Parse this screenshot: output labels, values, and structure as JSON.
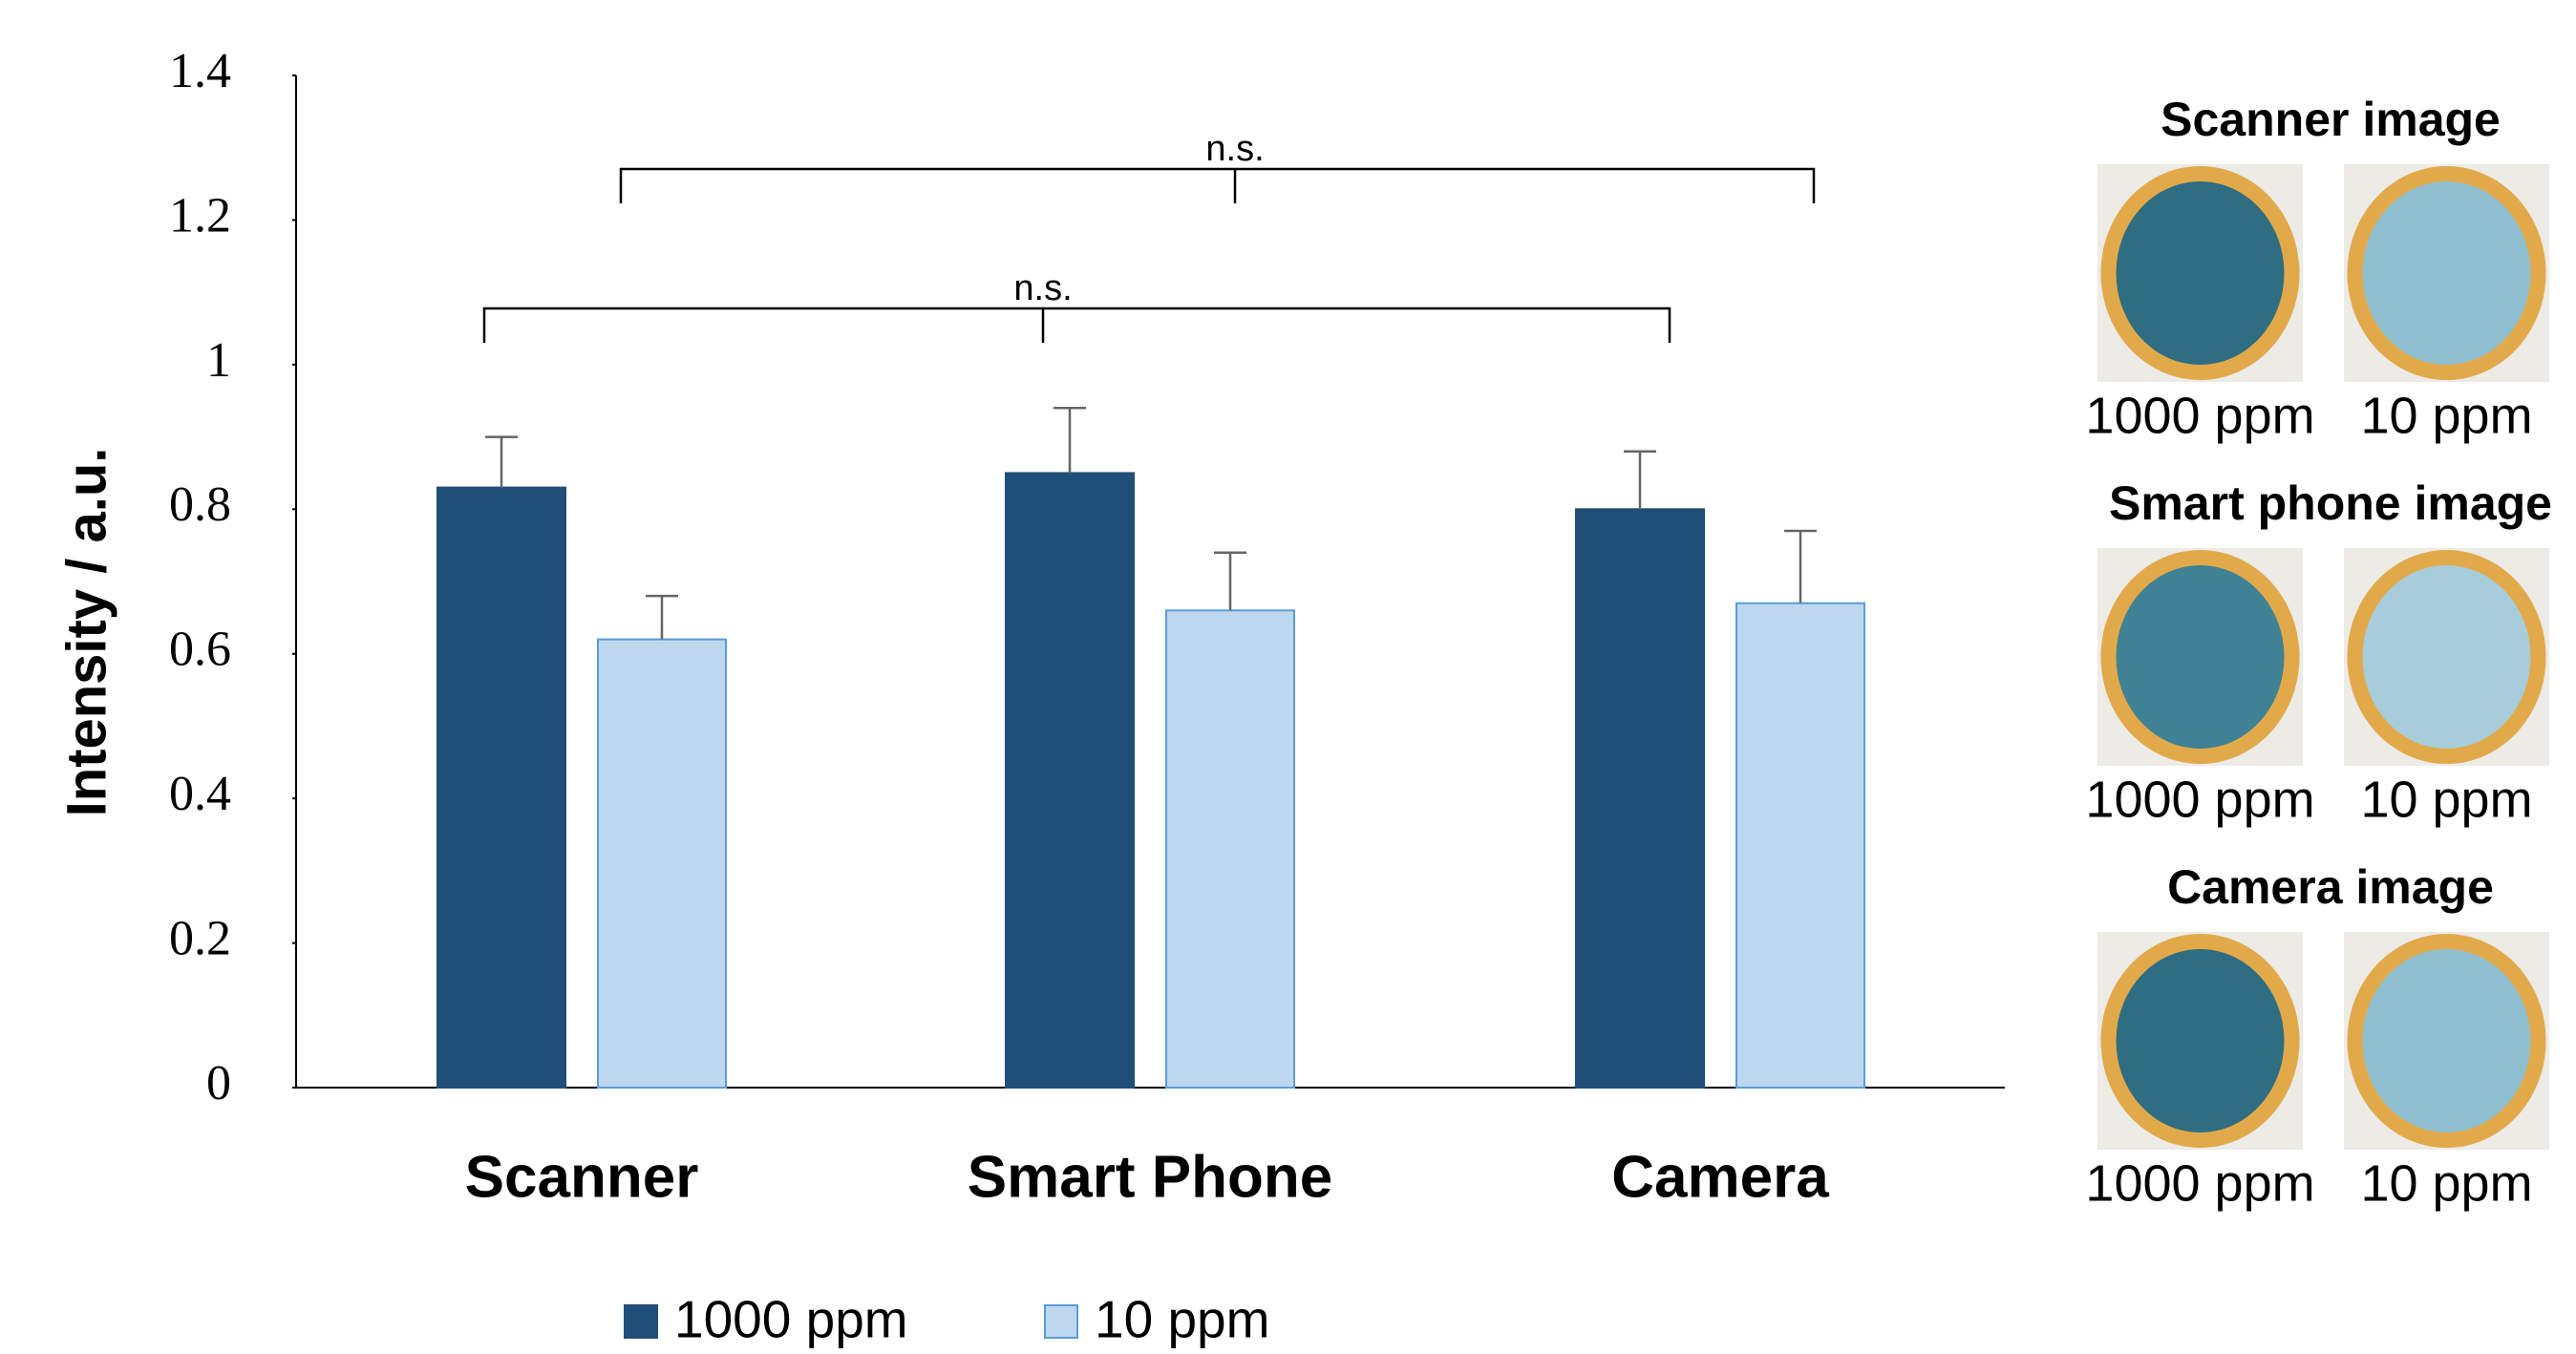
{
  "chart_data": {
    "type": "bar",
    "y_label": "Intensity / a.u.",
    "categories": [
      "Scanner",
      "Smart Phone",
      "Camera"
    ],
    "series": [
      {
        "name": "1000 ppm",
        "color": "#1f4e79",
        "values": [
          0.83,
          0.85,
          0.8
        ],
        "errors": [
          0.07,
          0.09,
          0.08
        ]
      },
      {
        "name": "10 ppm",
        "color": "#bdd7ee",
        "values": [
          0.62,
          0.66,
          0.67
        ],
        "errors": [
          0.06,
          0.08,
          0.1
        ]
      }
    ],
    "ylim": [
      0,
      1.4
    ],
    "yticks": [
      0,
      0.2,
      0.4,
      0.6,
      0.8,
      1,
      1.2,
      1.4
    ],
    "annotations": [
      "n.s.",
      "n.s."
    ],
    "legend": "bottom"
  },
  "image_panels": [
    {
      "title": "Scanner image",
      "labels": [
        "1000 ppm",
        "10 ppm"
      ]
    },
    {
      "title": "Smart phone image",
      "labels": [
        "1000 ppm",
        "10 ppm"
      ]
    },
    {
      "title": "Camera image",
      "labels": [
        "1000 ppm",
        "10 ppm"
      ]
    }
  ]
}
